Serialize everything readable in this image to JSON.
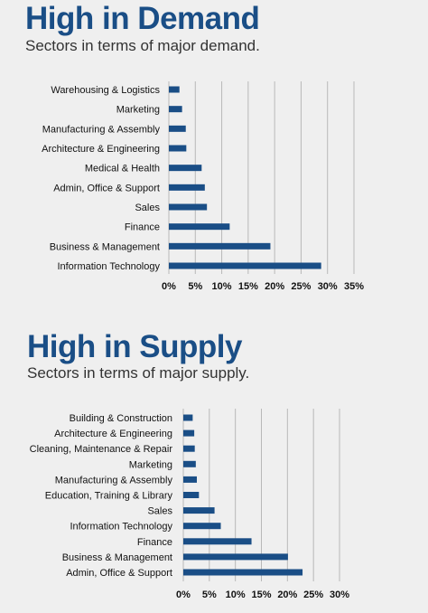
{
  "colors": {
    "bar": "#1a4e86",
    "grid": "#b8b8b8",
    "title": "#1a4e86",
    "background": "#efefef"
  },
  "chart_data": [
    {
      "type": "bar",
      "orientation": "horizontal",
      "title": "High in Demand",
      "subtitle": "Sectors in terms of major demand.",
      "categories": [
        "Warehousing & Logistics",
        "Marketing",
        "Manufacturing & Assembly",
        "Architecture & Engineering",
        "Medical & Health",
        "Admin, Office & Support",
        "Sales",
        "Finance",
        "Business & Management",
        "Information Technology"
      ],
      "values": [
        2,
        2.5,
        3.2,
        3.3,
        6.2,
        6.8,
        7.2,
        11.5,
        19.2,
        28.8
      ],
      "xlim": [
        0,
        35
      ],
      "ticks": [
        "0%",
        "5%",
        "10%",
        "15%",
        "20%",
        "25%",
        "30%",
        "35%"
      ],
      "grid": true,
      "xlabel": "",
      "ylabel": ""
    },
    {
      "type": "bar",
      "orientation": "horizontal",
      "title": "High in Supply",
      "subtitle": "Sectors in terms of major supply.",
      "categories": [
        "Building & Construction",
        "Architecture & Engineering",
        "Cleaning, Maintenance & Repair",
        "Marketing",
        "Manufacturing & Assembly",
        "Education, Training & Library",
        "Sales",
        "Information Technology",
        "Finance",
        "Business & Management",
        "Admin, Office & Support"
      ],
      "values": [
        1.8,
        2.1,
        2.2,
        2.4,
        2.6,
        3,
        6,
        7.2,
        13.1,
        20.1,
        22.9
      ],
      "xlim": [
        0,
        30
      ],
      "ticks": [
        "0%",
        "5%",
        "10%",
        "15%",
        "20%",
        "25%",
        "30%"
      ],
      "grid": true,
      "xlabel": "",
      "ylabel": ""
    }
  ]
}
